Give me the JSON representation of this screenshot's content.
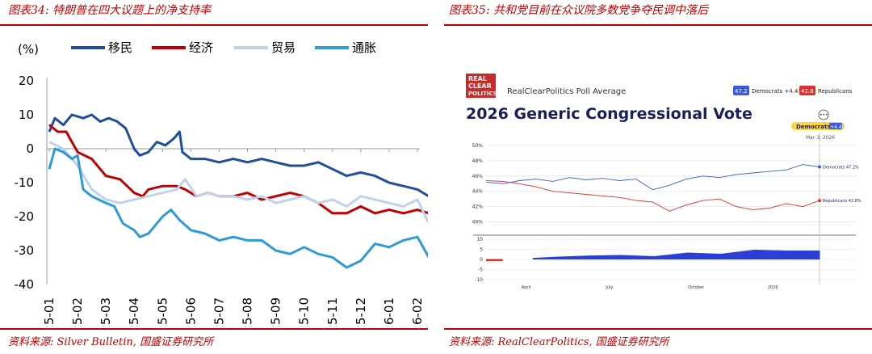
{
  "left": {
    "title": "图表34: 特朗普在四大议题上的净支持率",
    "source": "资料来源: Silver Bulletin, 国盛证券研究所",
    "chart_data": {
      "type": "line",
      "unit_label": "(%)",
      "ylim": [
        -40,
        20
      ],
      "yticks": [
        20,
        10,
        0,
        -10,
        -20,
        -30,
        -40
      ],
      "categories": [
        "25-01",
        "25-02",
        "25-03",
        "25-04",
        "25-05",
        "25-06",
        "25-07",
        "25-08",
        "25-09",
        "25-10",
        "25-11",
        "25-12",
        "26-01",
        "26-02"
      ],
      "series": [
        {
          "name": "移民",
          "color": "#1f4e9c",
          "values": [
            [
              0,
              5
            ],
            [
              0.2,
              9
            ],
            [
              0.5,
              7
            ],
            [
              0.8,
              10
            ],
            [
              1.2,
              9
            ],
            [
              1.5,
              10
            ],
            [
              1.8,
              8
            ],
            [
              2.1,
              9
            ],
            [
              2.4,
              8
            ],
            [
              2.7,
              6
            ],
            [
              3.0,
              0
            ],
            [
              3.2,
              -2
            ],
            [
              3.5,
              -1
            ],
            [
              3.8,
              2
            ],
            [
              4.1,
              1
            ],
            [
              4.4,
              3
            ],
            [
              4.6,
              5
            ],
            [
              4.7,
              -1
            ],
            [
              5.0,
              -3
            ],
            [
              5.5,
              -3
            ],
            [
              6.0,
              -4
            ],
            [
              6.5,
              -3
            ],
            [
              7.0,
              -4
            ],
            [
              7.5,
              -3
            ],
            [
              8.0,
              -4
            ],
            [
              8.5,
              -5
            ],
            [
              9.0,
              -5
            ],
            [
              9.5,
              -4
            ],
            [
              10.0,
              -6
            ],
            [
              10.5,
              -8
            ],
            [
              11.0,
              -7
            ],
            [
              11.5,
              -8
            ],
            [
              12.0,
              -10
            ],
            [
              12.5,
              -11
            ],
            [
              13.0,
              -12
            ],
            [
              13.4,
              -14
            ]
          ]
        },
        {
          "name": "经济",
          "color": "#c00000",
          "values": [
            [
              0,
              7
            ],
            [
              0.3,
              5
            ],
            [
              0.6,
              5
            ],
            [
              1.0,
              -1
            ],
            [
              1.5,
              -3
            ],
            [
              2.0,
              -8
            ],
            [
              2.5,
              -9
            ],
            [
              3.0,
              -13
            ],
            [
              3.3,
              -14
            ],
            [
              3.5,
              -12
            ],
            [
              4.0,
              -11
            ],
            [
              4.5,
              -11
            ],
            [
              4.8,
              -12
            ],
            [
              5.2,
              -14
            ],
            [
              5.6,
              -13
            ],
            [
              6.0,
              -14
            ],
            [
              6.5,
              -14
            ],
            [
              7.0,
              -13
            ],
            [
              7.5,
              -15
            ],
            [
              8.0,
              -14
            ],
            [
              8.5,
              -13
            ],
            [
              9.0,
              -14
            ],
            [
              9.5,
              -16
            ],
            [
              10.0,
              -19
            ],
            [
              10.5,
              -19
            ],
            [
              11.0,
              -17
            ],
            [
              11.5,
              -19
            ],
            [
              12.0,
              -18
            ],
            [
              12.5,
              -19
            ],
            [
              13.0,
              -18
            ],
            [
              13.4,
              -19
            ]
          ]
        },
        {
          "name": "贸易",
          "color": "#bfd3ea",
          "values": [
            [
              0,
              2
            ],
            [
              0.5,
              0
            ],
            [
              1.0,
              -5
            ],
            [
              1.5,
              -12
            ],
            [
              2.0,
              -15
            ],
            [
              2.5,
              -16
            ],
            [
              3.0,
              -15
            ],
            [
              3.5,
              -14
            ],
            [
              4.0,
              -13
            ],
            [
              4.5,
              -12
            ],
            [
              4.8,
              -9
            ],
            [
              5.2,
              -14
            ],
            [
              5.6,
              -13
            ],
            [
              6.0,
              -14
            ],
            [
              6.5,
              -14
            ],
            [
              7.0,
              -15
            ],
            [
              7.5,
              -14
            ],
            [
              8.0,
              -16
            ],
            [
              8.5,
              -15
            ],
            [
              9.0,
              -14
            ],
            [
              9.5,
              -16
            ],
            [
              10.0,
              -15
            ],
            [
              10.5,
              -17
            ],
            [
              11.0,
              -14
            ],
            [
              11.5,
              -15
            ],
            [
              12.0,
              -16
            ],
            [
              12.5,
              -17
            ],
            [
              13.0,
              -15
            ],
            [
              13.4,
              -22
            ]
          ]
        },
        {
          "name": "通胀",
          "color": "#2e9bd6",
          "values": [
            [
              0,
              -6
            ],
            [
              0.2,
              0
            ],
            [
              0.5,
              -1
            ],
            [
              0.8,
              -3
            ],
            [
              1.0,
              -2
            ],
            [
              1.2,
              -12
            ],
            [
              1.5,
              -14
            ],
            [
              2.0,
              -16
            ],
            [
              2.3,
              -17
            ],
            [
              2.6,
              -22
            ],
            [
              3.0,
              -24
            ],
            [
              3.2,
              -26
            ],
            [
              3.5,
              -25
            ],
            [
              3.8,
              -22
            ],
            [
              4.0,
              -20
            ],
            [
              4.3,
              -18
            ],
            [
              4.6,
              -21
            ],
            [
              5.0,
              -24
            ],
            [
              5.5,
              -25
            ],
            [
              6.0,
              -27
            ],
            [
              6.5,
              -26
            ],
            [
              7.0,
              -27
            ],
            [
              7.5,
              -27
            ],
            [
              8.0,
              -30
            ],
            [
              8.5,
              -31
            ],
            [
              9.0,
              -29
            ],
            [
              9.5,
              -31
            ],
            [
              10.0,
              -32
            ],
            [
              10.5,
              -35
            ],
            [
              11.0,
              -33
            ],
            [
              11.5,
              -28
            ],
            [
              12.0,
              -29
            ],
            [
              12.5,
              -27
            ],
            [
              13.0,
              -26
            ],
            [
              13.4,
              -32
            ]
          ]
        }
      ]
    }
  },
  "right": {
    "title": "图表35: 共和党目前在众议院多数党争夺民调中落后",
    "source": "资料来源: RealClearPolitics, 国盛证券研究所",
    "logo_lines": [
      "REAL",
      "CLEAR",
      "POLITICS"
    ],
    "poll_label": "RealClearPolitics Poll Average",
    "headline": "2026 Generic Congressional Vote",
    "badges": {
      "dem_value": "47.2",
      "dem_text": "Democrats +4.4",
      "rep_value": "42.8",
      "rep_text": "Republicans",
      "lead_label": "Democrats",
      "lead_value": "+4.4",
      "date": "Mar 3, 2026"
    },
    "end_labels": {
      "dem": "Democrats 47.2%",
      "rep": "Republicans 42.8%"
    },
    "chart_data": {
      "type": "line",
      "title": "2026 Generic Congressional Vote",
      "ylim": [
        39,
        50
      ],
      "yticks": [
        "50%",
        "48%",
        "46%",
        "44%",
        "42%",
        "40%"
      ],
      "ytick_values": [
        50,
        48,
        46,
        44,
        42,
        40
      ],
      "spread_ylim": [
        -10,
        10
      ],
      "spread_ticks": [
        "10",
        "5",
        "0",
        "-5",
        "-10"
      ],
      "spread_tick_values": [
        10,
        5,
        0,
        -5,
        -10
      ],
      "x_labels": [
        "April",
        "July",
        "October",
        "2026"
      ],
      "x_label_positions": [
        0.12,
        0.37,
        0.63,
        0.86
      ],
      "series": [
        {
          "name": "Democrats",
          "color": "#3b5bdb",
          "values": [
            [
              0,
              45.2
            ],
            [
              0.05,
              45.0
            ],
            [
              0.1,
              45.4
            ],
            [
              0.15,
              45.6
            ],
            [
              0.2,
              45.3
            ],
            [
              0.25,
              45.8
            ],
            [
              0.3,
              45.5
            ],
            [
              0.35,
              45.7
            ],
            [
              0.4,
              45.4
            ],
            [
              0.45,
              45.6
            ],
            [
              0.5,
              44.2
            ],
            [
              0.55,
              44.8
            ],
            [
              0.6,
              45.6
            ],
            [
              0.65,
              46.0
            ],
            [
              0.7,
              45.8
            ],
            [
              0.75,
              46.2
            ],
            [
              0.8,
              46.4
            ],
            [
              0.85,
              46.6
            ],
            [
              0.9,
              46.8
            ],
            [
              0.95,
              47.5
            ],
            [
              1.0,
              47.2
            ]
          ]
        },
        {
          "name": "Republicans",
          "color": "#e03131",
          "values": [
            [
              0,
              45.4
            ],
            [
              0.05,
              45.3
            ],
            [
              0.1,
              45.0
            ],
            [
              0.15,
              44.6
            ],
            [
              0.2,
              44.0
            ],
            [
              0.25,
              43.8
            ],
            [
              0.3,
              43.6
            ],
            [
              0.35,
              43.4
            ],
            [
              0.4,
              43.2
            ],
            [
              0.45,
              42.8
            ],
            [
              0.5,
              42.6
            ],
            [
              0.55,
              41.4
            ],
            [
              0.6,
              42.2
            ],
            [
              0.65,
              42.8
            ],
            [
              0.7,
              43.0
            ],
            [
              0.75,
              42.0
            ],
            [
              0.8,
              41.6
            ],
            [
              0.85,
              41.8
            ],
            [
              0.9,
              42.4
            ],
            [
              0.95,
              42.0
            ],
            [
              1.0,
              42.8
            ]
          ]
        }
      ],
      "spread": {
        "name": "Spread",
        "color": "#2b3fd6",
        "values": [
          [
            0,
            -0.3
          ],
          [
            0.1,
            0.4
          ],
          [
            0.2,
            1.3
          ],
          [
            0.3,
            1.9
          ],
          [
            0.4,
            2.2
          ],
          [
            0.5,
            1.6
          ],
          [
            0.6,
            3.4
          ],
          [
            0.7,
            2.8
          ],
          [
            0.8,
            4.8
          ],
          [
            0.9,
            4.4
          ],
          [
            1.0,
            4.4
          ]
        ]
      }
    }
  }
}
